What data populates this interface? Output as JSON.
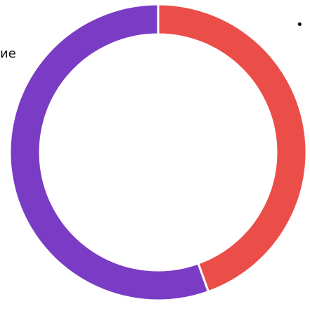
{
  "chart_data": {
    "type": "pie",
    "variant": "donut",
    "title": "",
    "slices": [
      {
        "label": "",
        "value": 44.5,
        "color": "#EB4D48"
      },
      {
        "label": "",
        "value": 55.5,
        "color": "#7A3CC4"
      }
    ],
    "legend": {
      "left_text": "ие",
      "right_text": "•"
    }
  }
}
